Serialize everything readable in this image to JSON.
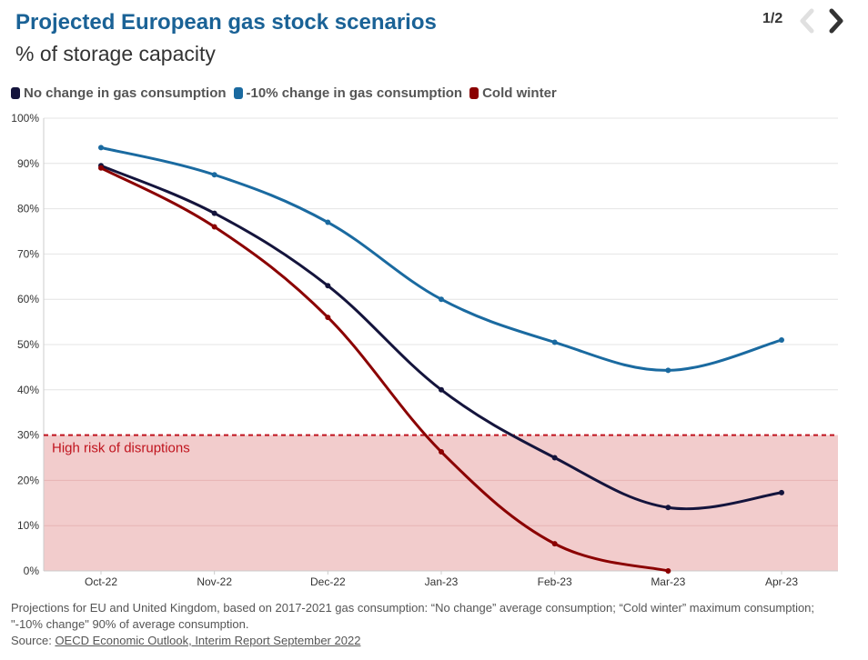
{
  "header": {
    "title": "Projected European gas stock scenarios",
    "subtitle": "% of storage capacity",
    "pager": "1/2"
  },
  "colors": {
    "no_change": "#14143c",
    "minus10": "#1a6aa0",
    "cold": "#8b0000",
    "risk_fill": "#f2cccc",
    "risk_line": "#c0141e"
  },
  "chart_data": {
    "type": "line",
    "categories": [
      "Oct-22",
      "Nov-22",
      "Dec-22",
      "Jan-23",
      "Feb-23",
      "Mar-23",
      "Apr-23"
    ],
    "ylim": [
      0,
      100
    ],
    "yticks": [
      0,
      10,
      20,
      30,
      40,
      50,
      60,
      70,
      80,
      90,
      100
    ],
    "ytick_labels": [
      "0%",
      "10%",
      "20%",
      "30%",
      "40%",
      "50%",
      "60%",
      "70%",
      "80%",
      "90%",
      "100%"
    ],
    "series": [
      {
        "name": "No change in gas consumption",
        "key": "no_change",
        "values": [
          89.5,
          79,
          63,
          40,
          25,
          14,
          17.3
        ]
      },
      {
        "name": "-10% change in gas consumption",
        "key": "minus10",
        "values": [
          93.5,
          87.5,
          77,
          60,
          50.5,
          44.3,
          51
        ]
      },
      {
        "name": "Cold winter",
        "key": "cold",
        "values": [
          89,
          76,
          56,
          26.3,
          6,
          0,
          null
        ]
      }
    ],
    "threshold": {
      "value": 30,
      "label": "High risk of disruptions"
    },
    "xlabel": "",
    "ylabel": ""
  },
  "footnote": {
    "text": "Projections for EU and United Kingdom, based on 2017-2021 gas consumption: “No change” average consumption; “Cold winter” maximum consumption; \"-10% change\" 90% of average consumption.",
    "source_label": "Source:",
    "source_link": "OECD Economic Outlook, Interim Report September 2022"
  }
}
